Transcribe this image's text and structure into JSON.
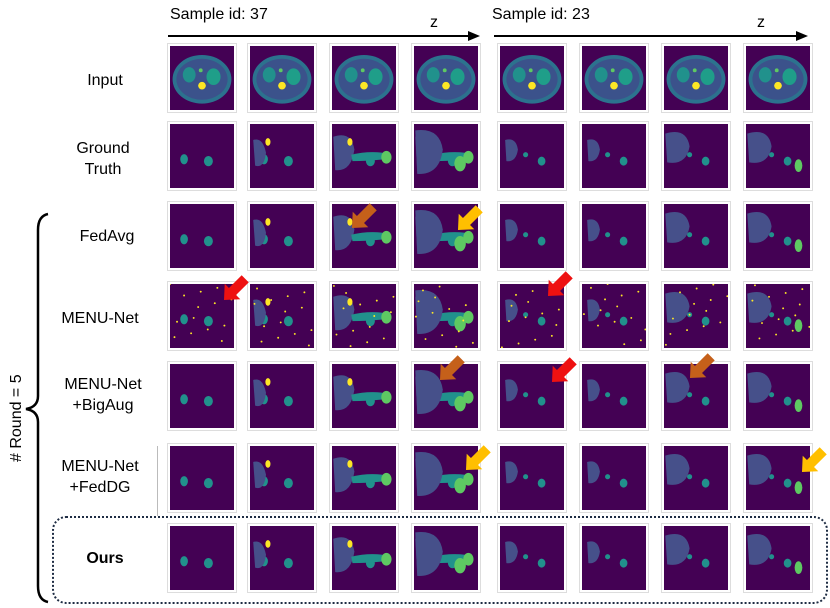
{
  "header": {
    "sample_a": "Sample id: 37",
    "sample_b": "Sample id: 23",
    "axis_label": "z"
  },
  "rows": {
    "input": "Input",
    "ground_truth_1": "Ground",
    "ground_truth_2": "Truth",
    "fedavg": "FedAvg",
    "menunet": "MENU-Net",
    "bigaug_1": "MENU-Net",
    "bigaug_2": "+BigAug",
    "feddg_1": "MENU-Net",
    "feddg_2": "+FedDG",
    "ours": "Ours"
  },
  "group_label": "# Round = 5",
  "colors": {
    "background": "#440154",
    "organ_large": "#46508a",
    "organ_small": "#21918c",
    "organ_yellow": "#fde725",
    "organ_green": "#5ec962",
    "arrow_red": "#ee1111",
    "arrow_orange": "#c5601a",
    "arrow_yellow": "#ffbf00",
    "box_border": "#1f2d44"
  }
}
